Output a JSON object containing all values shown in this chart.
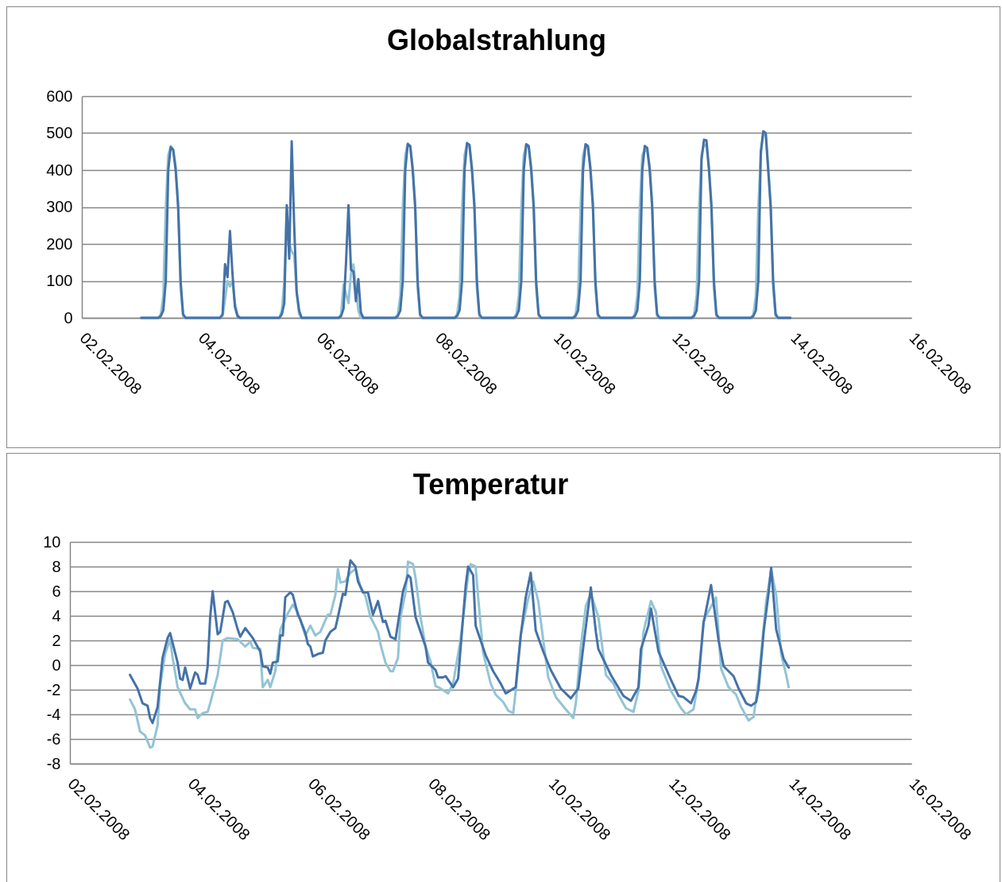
{
  "chart_data": [
    {
      "type": "line",
      "title": "Globalstrahlung",
      "grid": "y",
      "xlim": [
        "2008-02-02",
        "2008-02-16"
      ],
      "xticks": [
        {
          "value": "2008-02-02",
          "label": "02.02.2008"
        },
        {
          "value": "2008-02-04",
          "label": "04.02.2008"
        },
        {
          "value": "2008-02-06",
          "label": "06.02.2008"
        },
        {
          "value": "2008-02-08",
          "label": "08.02.2008"
        },
        {
          "value": "2008-02-10",
          "label": "10.02.2008"
        },
        {
          "value": "2008-02-12",
          "label": "12.02.2008"
        },
        {
          "value": "2008-02-14",
          "label": "14.02.2008"
        },
        {
          "value": "2008-02-16",
          "label": "16.02.2008"
        }
      ],
      "ylim": [
        0,
        600
      ],
      "yticks": [
        0,
        100,
        200,
        300,
        400,
        500,
        600
      ],
      "x": [
        "2008-02-03T00:00",
        "2008-02-03T07:00",
        "2008-02-03T08:00",
        "2008-02-03T09:00",
        "2008-02-03T10:00",
        "2008-02-03T11:00",
        "2008-02-03T12:00",
        "2008-02-03T13:00",
        "2008-02-03T14:00",
        "2008-02-03T15:00",
        "2008-02-03T16:00",
        "2008-02-03T17:00",
        "2008-02-03T18:00",
        "2008-02-04T07:00",
        "2008-02-04T08:00",
        "2008-02-04T09:00",
        "2008-02-04T10:00",
        "2008-02-04T11:00",
        "2008-02-04T12:00",
        "2008-02-04T13:00",
        "2008-02-04T14:00",
        "2008-02-04T15:00",
        "2008-02-04T16:00",
        "2008-02-04T17:00",
        "2008-02-04T18:00",
        "2008-02-05T07:00",
        "2008-02-05T08:00",
        "2008-02-05T09:00",
        "2008-02-05T10:00",
        "2008-02-05T11:00",
        "2008-02-05T12:00",
        "2008-02-05T13:00",
        "2008-02-05T14:00",
        "2008-02-05T15:00",
        "2008-02-05T16:00",
        "2008-02-05T17:00",
        "2008-02-05T18:00",
        "2008-02-06T07:00",
        "2008-02-06T08:00",
        "2008-02-06T09:00",
        "2008-02-06T10:00",
        "2008-02-06T11:00",
        "2008-02-06T12:00",
        "2008-02-06T13:00",
        "2008-02-06T14:00",
        "2008-02-06T15:00",
        "2008-02-06T16:00",
        "2008-02-06T17:00",
        "2008-02-06T18:00",
        "2008-02-07T07:00",
        "2008-02-07T08:00",
        "2008-02-07T09:00",
        "2008-02-07T10:00",
        "2008-02-07T11:00",
        "2008-02-07T12:00",
        "2008-02-07T13:00",
        "2008-02-07T14:00",
        "2008-02-07T15:00",
        "2008-02-07T16:00",
        "2008-02-07T17:00",
        "2008-02-07T18:00",
        "2008-02-08T07:00",
        "2008-02-08T08:00",
        "2008-02-08T09:00",
        "2008-02-08T10:00",
        "2008-02-08T11:00",
        "2008-02-08T12:00",
        "2008-02-08T13:00",
        "2008-02-08T14:00",
        "2008-02-08T15:00",
        "2008-02-08T16:00",
        "2008-02-08T17:00",
        "2008-02-08T18:00",
        "2008-02-09T07:00",
        "2008-02-09T08:00",
        "2008-02-09T09:00",
        "2008-02-09T10:00",
        "2008-02-09T11:00",
        "2008-02-09T12:00",
        "2008-02-09T13:00",
        "2008-02-09T14:00",
        "2008-02-09T15:00",
        "2008-02-09T16:00",
        "2008-02-09T17:00",
        "2008-02-09T18:00",
        "2008-02-10T07:00",
        "2008-02-10T08:00",
        "2008-02-10T09:00",
        "2008-02-10T10:00",
        "2008-02-10T11:00",
        "2008-02-10T12:00",
        "2008-02-10T13:00",
        "2008-02-10T14:00",
        "2008-02-10T15:00",
        "2008-02-10T16:00",
        "2008-02-10T17:00",
        "2008-02-10T18:00",
        "2008-02-11T07:00",
        "2008-02-11T08:00",
        "2008-02-11T09:00",
        "2008-02-11T10:00",
        "2008-02-11T11:00",
        "2008-02-11T12:00",
        "2008-02-11T13:00",
        "2008-02-11T14:00",
        "2008-02-11T15:00",
        "2008-02-11T16:00",
        "2008-02-11T17:00",
        "2008-02-11T18:00",
        "2008-02-12T07:00",
        "2008-02-12T08:00",
        "2008-02-12T09:00",
        "2008-02-12T10:00",
        "2008-02-12T11:00",
        "2008-02-12T12:00",
        "2008-02-12T13:00",
        "2008-02-12T14:00",
        "2008-02-12T15:00",
        "2008-02-12T16:00",
        "2008-02-12T17:00",
        "2008-02-12T18:00",
        "2008-02-13T07:00",
        "2008-02-13T08:00",
        "2008-02-13T09:00",
        "2008-02-13T10:00",
        "2008-02-13T11:00",
        "2008-02-13T12:00",
        "2008-02-13T13:00",
        "2008-02-13T14:00",
        "2008-02-13T15:00",
        "2008-02-13T16:00",
        "2008-02-13T17:00",
        "2008-02-13T18:00",
        "2008-02-13T23:00"
      ],
      "series": [
        {
          "color": "#93c4d5",
          "values": [
            0,
            0,
            10,
            60,
            300,
            440,
            465,
            455,
            410,
            310,
            80,
            5,
            0,
            0,
            0,
            5,
            50,
            100,
            85,
            100,
            40,
            10,
            0,
            0,
            0,
            0,
            0,
            20,
            100,
            300,
            200,
            180,
            170,
            70,
            10,
            0,
            0,
            0,
            0,
            10,
            90,
            65,
            40,
            120,
            145,
            80,
            20,
            0,
            0,
            0,
            10,
            60,
            300,
            440,
            472,
            465,
            410,
            310,
            80,
            5,
            0,
            0,
            10,
            60,
            300,
            440,
            470,
            465,
            410,
            310,
            80,
            5,
            0,
            0,
            10,
            60,
            300,
            440,
            468,
            460,
            410,
            310,
            80,
            5,
            0,
            0,
            10,
            60,
            300,
            440,
            465,
            460,
            410,
            310,
            80,
            5,
            0,
            0,
            10,
            60,
            300,
            440,
            455,
            450,
            410,
            310,
            80,
            5,
            0,
            0,
            10,
            60,
            300,
            440,
            470,
            465,
            410,
            310,
            80,
            5,
            0,
            0,
            10,
            60,
            300,
            440,
            500,
            495,
            410,
            310,
            80,
            5,
            0,
            0
          ]
        },
        {
          "color": "#4572a7",
          "values": [
            0,
            0,
            5,
            20,
            100,
            400,
            462,
            455,
            400,
            300,
            100,
            10,
            0,
            0,
            0,
            10,
            145,
            110,
            235,
            120,
            30,
            5,
            0,
            0,
            0,
            0,
            0,
            10,
            40,
            305,
            160,
            478,
            250,
            70,
            20,
            0,
            0,
            0,
            0,
            5,
            25,
            150,
            305,
            130,
            125,
            45,
            105,
            15,
            0,
            0,
            5,
            20,
            100,
            400,
            470,
            465,
            400,
            300,
            100,
            10,
            0,
            0,
            5,
            20,
            100,
            400,
            473,
            468,
            400,
            300,
            100,
            10,
            0,
            0,
            5,
            20,
            100,
            400,
            470,
            465,
            400,
            300,
            100,
            10,
            0,
            0,
            5,
            20,
            100,
            400,
            470,
            465,
            400,
            300,
            100,
            10,
            0,
            0,
            5,
            20,
            100,
            400,
            465,
            460,
            400,
            300,
            100,
            10,
            0,
            0,
            5,
            20,
            100,
            430,
            482,
            480,
            400,
            300,
            100,
            10,
            0,
            0,
            5,
            20,
            100,
            450,
            505,
            500,
            400,
            300,
            100,
            10,
            0,
            0
          ]
        }
      ]
    },
    {
      "type": "line",
      "title": "Temperatur",
      "grid": "y",
      "xlim": [
        "2008-02-02",
        "2008-02-16"
      ],
      "xticks": [
        {
          "value": "2008-02-02",
          "label": "02.02.2008"
        },
        {
          "value": "2008-02-04",
          "label": "04.02.2008"
        },
        {
          "value": "2008-02-06",
          "label": "06.02.2008"
        },
        {
          "value": "2008-02-08",
          "label": "08.02.2008"
        },
        {
          "value": "2008-02-10",
          "label": "10.02.2008"
        },
        {
          "value": "2008-02-12",
          "label": "12.02.2008"
        },
        {
          "value": "2008-02-14",
          "label": "14.02.2008"
        },
        {
          "value": "2008-02-16",
          "label": "16.02.2008"
        }
      ],
      "ylim": [
        -8,
        10
      ],
      "yticks": [
        -8,
        -6,
        -4,
        -2,
        0,
        2,
        4,
        6,
        8,
        10
      ],
      "series": [
        {
          "color": "#93c4d5",
          "x": [
            "2008-02-03T00:00",
            "2008-02-03T02:00",
            "2008-02-03T04:00",
            "2008-02-03T06:00",
            "2008-02-03T08:00",
            "2008-02-03T09:00",
            "2008-02-03T11:00",
            "2008-02-03T12:00",
            "2008-02-03T14:00",
            "2008-02-03T16:00",
            "2008-02-03T17:00",
            "2008-02-03T19:00",
            "2008-02-03T22:00",
            "2008-02-04T00:00",
            "2008-02-04T02:00",
            "2008-02-04T03:00",
            "2008-02-04T05:00",
            "2008-02-04T07:00",
            "2008-02-04T08:00",
            "2008-02-04T11:00",
            "2008-02-04T13:00",
            "2008-02-04T15:00",
            "2008-02-04T19:00",
            "2008-02-04T22:00",
            "2008-02-05T00:00",
            "2008-02-05T01:00",
            "2008-02-05T04:00",
            "2008-02-05T05:00",
            "2008-02-05T07:00",
            "2008-02-05T08:00",
            "2008-02-05T10:00",
            "2008-02-05T12:00",
            "2008-02-05T15:00",
            "2008-02-05T17:00",
            "2008-02-05T19:00",
            "2008-02-05T21:00",
            "2008-02-05T22:00",
            "2008-02-06T00:00",
            "2008-02-06T02:00",
            "2008-02-06T04:00",
            "2008-02-06T07:00",
            "2008-02-06T08:00",
            "2008-02-06T10:00",
            "2008-02-06T11:00",
            "2008-02-06T12:00",
            "2008-02-06T14:00",
            "2008-02-06T16:00",
            "2008-02-06T18:00",
            "2008-02-06T20:00",
            "2008-02-06T22:00",
            "2008-02-07T00:00",
            "2008-02-07T03:00",
            "2008-02-07T04:00",
            "2008-02-07T06:00",
            "2008-02-07T08:00",
            "2008-02-07T09:00",
            "2008-02-07T11:00",
            "2008-02-07T12:00",
            "2008-02-07T14:00",
            "2008-02-07T15:00",
            "2008-02-07T17:00",
            "2008-02-07T18:00",
            "2008-02-07T20:00",
            "2008-02-07T22:00",
            "2008-02-08T00:00",
            "2008-02-08T02:00",
            "2008-02-08T04:00",
            "2008-02-08T07:00",
            "2008-02-08T09:00",
            "2008-02-08T12:00",
            "2008-02-08T15:00",
            "2008-02-08T16:00",
            "2008-02-08T18:00",
            "2008-02-08T19:00",
            "2008-02-08T21:00",
            "2008-02-09T00:00",
            "2008-02-09T02:00",
            "2008-02-09T05:00",
            "2008-02-09T07:00",
            "2008-02-09T09:00",
            "2008-02-09T10:00",
            "2008-02-09T12:00",
            "2008-02-09T15:00",
            "2008-02-09T17:00",
            "2008-02-09T19:00",
            "2008-02-09T21:00",
            "2008-02-09T23:00",
            "2008-02-10T02:00",
            "2008-02-10T06:00",
            "2008-02-10T09:00",
            "2008-02-10T10:00",
            "2008-02-10T12:00",
            "2008-02-10T14:00",
            "2008-02-10T16:00",
            "2008-02-10T19:00",
            "2008-02-10T22:00",
            "2008-02-11T01:00",
            "2008-02-11T03:00",
            "2008-02-11T06:00",
            "2008-02-11T09:00",
            "2008-02-11T11:00",
            "2008-02-11T13:00",
            "2008-02-11T16:00",
            "2008-02-11T18:00",
            "2008-02-11T20:00",
            "2008-02-12T00:00",
            "2008-02-12T04:00",
            "2008-02-12T06:00",
            "2008-02-12T09:00",
            "2008-02-12T11:00",
            "2008-02-12T13:00",
            "2008-02-12T18:00",
            "2008-02-12T20:00",
            "2008-02-12T23:00",
            "2008-02-13T02:00",
            "2008-02-13T04:00",
            "2008-02-13T07:00",
            "2008-02-13T09:00",
            "2008-02-13T11:00",
            "2008-02-13T14:00",
            "2008-02-13T16:00",
            "2008-02-13T18:00",
            "2008-02-13T20:00",
            "2008-02-13T22:00",
            "2008-02-13T23:00"
          ],
          "values": [
            -2.8,
            -3.6,
            -5.4,
            -5.7,
            -6.7,
            -6.6,
            -4.9,
            -1.7,
            0.9,
            2.1,
            0.6,
            -1.8,
            -3.1,
            -3.6,
            -3.6,
            -4.3,
            -3.9,
            -3.8,
            -3.1,
            -0.8,
            2.0,
            2.2,
            2.1,
            1.5,
            1.9,
            1.4,
            1.3,
            -1.8,
            -1.2,
            -1.8,
            -0.5,
            2.9,
            4.2,
            4.9,
            4.3,
            3.0,
            2.4,
            3.2,
            2.4,
            2.7,
            4.1,
            4.1,
            5.7,
            7.8,
            6.7,
            6.8,
            7.5,
            7.8,
            6.4,
            5.6,
            3.9,
            2.7,
            1.7,
            0.2,
            -0.5,
            -0.5,
            0.6,
            3.9,
            5.9,
            8.4,
            8.2,
            7.1,
            3.9,
            1.5,
            0.3,
            -1.7,
            -1.9,
            -2.3,
            -1.5,
            2.1,
            7.3,
            8.2,
            8.0,
            5.5,
            1.0,
            -1.5,
            -2.4,
            -3.0,
            -3.7,
            -3.9,
            -2.1,
            2.4,
            5.4,
            6.8,
            5.2,
            2.0,
            -1.0,
            -2.6,
            -3.6,
            -4.3,
            -3.1,
            1.5,
            4.8,
            5.8,
            3.9,
            -0.8,
            -1.5,
            -2.4,
            -3.5,
            -3.8,
            -2.1,
            2.7,
            5.2,
            4.3,
            -0.1,
            -2.1,
            -3.5,
            -4.0,
            -3.6,
            -1.2,
            3.6,
            5.5,
            -0.3,
            -1.8,
            -2.4,
            -3.4,
            -4.5,
            -4.2,
            -1.2,
            5.2,
            7.7,
            5.7,
            0.9,
            -0.8,
            -1.8
          ]
        },
        {
          "color": "#4572a7",
          "x": [
            "2008-02-03T00:00",
            "2008-02-03T03:00",
            "2008-02-03T05:00",
            "2008-02-03T07:00",
            "2008-02-03T08:00",
            "2008-02-03T09:00",
            "2008-02-03T11:00",
            "2008-02-03T13:00",
            "2008-02-03T15:00",
            "2008-02-03T16:00",
            "2008-02-03T19:00",
            "2008-02-03T20:00",
            "2008-02-03T21:00",
            "2008-02-03T22:00",
            "2008-02-04T00:00",
            "2008-02-04T02:00",
            "2008-02-04T03:00",
            "2008-02-04T04:00",
            "2008-02-04T06:00",
            "2008-02-04T07:00",
            "2008-02-04T08:00",
            "2008-02-04T09:00",
            "2008-02-04T11:00",
            "2008-02-04T12:00",
            "2008-02-04T14:00",
            "2008-02-04T15:00",
            "2008-02-04T17:00",
            "2008-02-04T19:00",
            "2008-02-04T20:00",
            "2008-02-04T22:00",
            "2008-02-05T01:00",
            "2008-02-05T04:00",
            "2008-02-05T05:00",
            "2008-02-05T07:00",
            "2008-02-05T08:00",
            "2008-02-05T09:00",
            "2008-02-05T11:00",
            "2008-02-05T12:00",
            "2008-02-05T13:00",
            "2008-02-05T14:00",
            "2008-02-05T16:00",
            "2008-02-05T17:00",
            "2008-02-05T19:00",
            "2008-02-05T20:00",
            "2008-02-05T22:00",
            "2008-02-05T23:00",
            "2008-02-06T00:00",
            "2008-02-06T01:00",
            "2008-02-06T03:00",
            "2008-02-06T05:00",
            "2008-02-06T06:00",
            "2008-02-06T08:00",
            "2008-02-06T10:00",
            "2008-02-06T11:00",
            "2008-02-06T13:00",
            "2008-02-06T14:00",
            "2008-02-06T16:00",
            "2008-02-06T18:00",
            "2008-02-06T19:00",
            "2008-02-06T21:00",
            "2008-02-06T23:00",
            "2008-02-07T01:00",
            "2008-02-07T03:00",
            "2008-02-07T05:00",
            "2008-02-07T06:00",
            "2008-02-07T08:00",
            "2008-02-07T10:00",
            "2008-02-07T13:00",
            "2008-02-07T15:00",
            "2008-02-07T16:00",
            "2008-02-07T18:00",
            "2008-02-07T22:00",
            "2008-02-07T23:00",
            "2008-02-08T02:00",
            "2008-02-08T03:00",
            "2008-02-08T05:00",
            "2008-02-08T06:00",
            "2008-02-08T09:00",
            "2008-02-08T11:00",
            "2008-02-08T14:00",
            "2008-02-08T15:00",
            "2008-02-08T17:00",
            "2008-02-08T18:00",
            "2008-02-08T22:00",
            "2008-02-09T01:00",
            "2008-02-09T04:00",
            "2008-02-09T06:00",
            "2008-02-09T10:00",
            "2008-02-09T12:00",
            "2008-02-09T14:00",
            "2008-02-09T16:00",
            "2008-02-09T18:00",
            "2008-02-09T21:00",
            "2008-02-10T00:00",
            "2008-02-10T04:00",
            "2008-02-10T08:00",
            "2008-02-10T11:00",
            "2008-02-10T13:00",
            "2008-02-10T15:00",
            "2008-02-10T16:00",
            "2008-02-10T18:00",
            "2008-02-10T19:00",
            "2008-02-11T00:00",
            "2008-02-11T05:00",
            "2008-02-11T08:00",
            "2008-02-11T11:00",
            "2008-02-11T12:00",
            "2008-02-11T15:00",
            "2008-02-11T16:00",
            "2008-02-11T19:00",
            "2008-02-12T00:00",
            "2008-02-12T03:00",
            "2008-02-12T05:00",
            "2008-02-12T08:00",
            "2008-02-12T10:00",
            "2008-02-12T11:00",
            "2008-02-12T13:00",
            "2008-02-12T16:00",
            "2008-02-12T19:00",
            "2008-02-12T21:00",
            "2008-02-13T01:00",
            "2008-02-13T03:00",
            "2008-02-13T06:00",
            "2008-02-13T08:00",
            "2008-02-13T10:00",
            "2008-02-13T11:00",
            "2008-02-13T13:00",
            "2008-02-13T15:00",
            "2008-02-13T16:00",
            "2008-02-13T18:00",
            "2008-02-13T21:00",
            "2008-02-13T23:00"
          ],
          "values": [
            -0.8,
            -1.9,
            -3.1,
            -3.3,
            -4.3,
            -4.7,
            -3.4,
            0.6,
            2.2,
            2.6,
            0.2,
            -1.1,
            -1.2,
            -0.2,
            -1.9,
            -0.6,
            -0.8,
            -1.5,
            -1.5,
            -0.1,
            3.9,
            6.0,
            2.5,
            2.7,
            5.1,
            5.2,
            4.3,
            2.9,
            2.3,
            3.0,
            2.2,
            1.1,
            -0.1,
            -0.2,
            -0.7,
            0.2,
            0.3,
            2.4,
            2.4,
            5.5,
            5.9,
            5.7,
            4.1,
            3.7,
            2.6,
            1.7,
            1.5,
            0.7,
            0.9,
            1.0,
            2.0,
            2.7,
            3.0,
            3.9,
            5.8,
            5.7,
            8.5,
            8.0,
            6.8,
            5.9,
            5.9,
            4.1,
            5.2,
            3.5,
            3.6,
            2.3,
            2.1,
            6.0,
            7.3,
            7.1,
            3.9,
            1.5,
            0.2,
            -0.4,
            -1.0,
            -1.0,
            -0.9,
            -1.8,
            -1.1,
            6.4,
            8.0,
            7.3,
            3.2,
            0.8,
            -0.5,
            -1.5,
            -2.3,
            -1.8,
            2.4,
            5.5,
            7.5,
            2.8,
            1.1,
            -0.4,
            -1.9,
            -2.7,
            -1.9,
            1.5,
            4.7,
            6.3,
            2.7,
            1.3,
            -0.8,
            -2.5,
            -2.9,
            -1.8,
            1.3,
            3.2,
            4.6,
            1.1,
            -1.2,
            -2.5,
            -2.6,
            -3.1,
            -2.1,
            -1.1,
            3.4,
            6.5,
            2.0,
            -0.1,
            -0.9,
            -1.9,
            -3.1,
            -3.3,
            -3.0,
            -1.9,
            2.7,
            5.9,
            7.9,
            2.9,
            0.5,
            -0.2
          ]
        }
      ]
    }
  ]
}
